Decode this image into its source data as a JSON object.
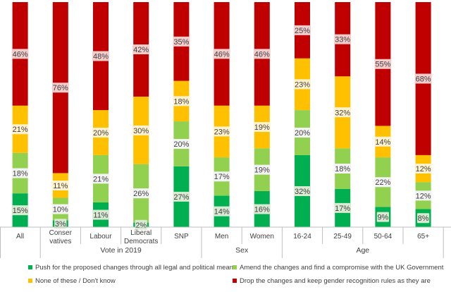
{
  "chart_data": {
    "type": "bar",
    "stacked": true,
    "categories": [
      "All",
      "Conser vatives",
      "Labour",
      "Liberal Democrats",
      "SNP",
      "Men",
      "Women",
      "16-24",
      "25-49",
      "50-64",
      "65+"
    ],
    "category_lines": [
      [
        "All"
      ],
      [
        "Conser",
        "vatives"
      ],
      [
        "Labour"
      ],
      [
        "Liberal",
        "Democrats"
      ],
      [
        "SNP"
      ],
      [
        "Men"
      ],
      [
        "Women"
      ],
      [
        "16-24"
      ],
      [
        "25-49"
      ],
      [
        "50-64"
      ],
      [
        "65+"
      ]
    ],
    "groups": [
      {
        "label": "Vote in 2019",
        "start": 1,
        "end": 4
      },
      {
        "label": "Sex",
        "start": 5,
        "end": 6
      },
      {
        "label": "Age",
        "start": 7,
        "end": 10
      }
    ],
    "series": [
      {
        "name": "Push for the proposed changes through all legal and political means",
        "color": "#00B050",
        "values": [
          15,
          3,
          11,
          2,
          27,
          14,
          16,
          32,
          17,
          9,
          8
        ]
      },
      {
        "name": "Amend the changes and find a compromise with the UK Government",
        "color": "#92D050",
        "values": [
          18,
          10,
          21,
          26,
          20,
          17,
          19,
          20,
          18,
          22,
          12
        ]
      },
      {
        "name": "None of these / Don't know",
        "color": "#FFC000",
        "values": [
          21,
          11,
          20,
          30,
          18,
          23,
          19,
          23,
          32,
          14,
          12
        ]
      },
      {
        "name": "Drop the changes and keep gender recognition rules as they are",
        "color": "#C00000",
        "values": [
          46,
          76,
          48,
          42,
          35,
          46,
          46,
          25,
          33,
          55,
          68
        ]
      }
    ],
    "data_labels": [
      [
        "15%",
        "3%",
        "11%",
        "2%",
        "27%",
        "14%",
        "16%",
        "32%",
        "17%",
        "9%",
        "8%"
      ],
      [
        "18%",
        "10%",
        "21%",
        "26%",
        "20%",
        "17%",
        "19%",
        "20%",
        "18%",
        "22%",
        "12%"
      ],
      [
        "21%",
        "11%",
        "20%",
        "30%",
        "18%",
        "23%",
        "19%",
        "23%",
        "32%",
        "14%",
        "12%"
      ],
      [
        "46%",
        "76%",
        "48%",
        "42%",
        "35%",
        "46%",
        "46%",
        "25%",
        "33%",
        "55%",
        "68%"
      ]
    ],
    "ylim": [
      0,
      100
    ],
    "title": "",
    "xlabel": "",
    "ylabel": "",
    "legend_position": "bottom"
  }
}
